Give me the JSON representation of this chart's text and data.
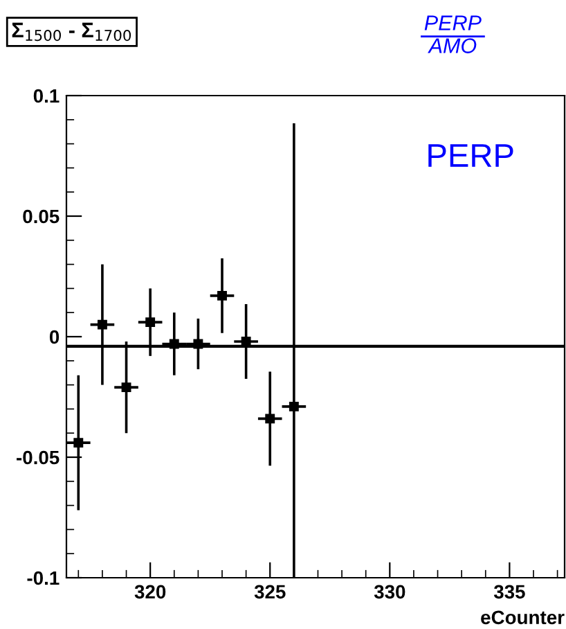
{
  "chart_data": {
    "type": "scatter",
    "title": "Σ$_{1500}$ - Σ$_{1700}$",
    "xlabel": "eCounter",
    "x": [
      317,
      318,
      319,
      320,
      321,
      322,
      323,
      324,
      325,
      326
    ],
    "series": [
      {
        "color": "#000000",
        "values": [
          -0.044,
          0.005,
          -0.021,
          0.006,
          -0.003,
          -0.003,
          0.017,
          -0.002,
          -0.034,
          -0.029
        ],
        "errors": [
          0.028,
          0.025,
          0.019,
          0.014,
          0.013,
          0.0105,
          0.0155,
          0.0155,
          0.0195,
          [
            -0.1,
            0.0885
          ]
        ],
        "xerrors": [
          0.5,
          0.5,
          0.5,
          0.5,
          0.5,
          0.5,
          0.5,
          0.5,
          0.5,
          0.5
        ]
      }
    ],
    "marker": "square",
    "xlim": [
      316.5,
      337.3
    ],
    "ylim": [
      -0.1,
      0.1
    ],
    "xticks": [
      320,
      325,
      330,
      335
    ],
    "yticks": [
      -0.1,
      -0.05,
      0,
      0.05,
      0.1
    ],
    "ref_lines": [
      {
        "axis": "y",
        "value": -0.004,
        "color": "#000000"
      }
    ],
    "annotations": [
      "PERP",
      "AMO",
      "PERP"
    ],
    "grid": false,
    "legend": false
  }
}
